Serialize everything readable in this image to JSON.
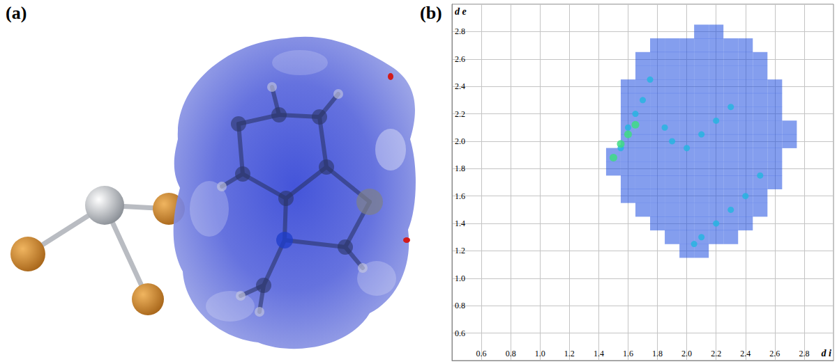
{
  "panel_labels": [
    "(a)",
    "(b)"
  ],
  "chart_data": {
    "type": "scatter",
    "xlabel": "d i",
    "ylabel": "d e",
    "xlim": [
      0.4,
      3.0
    ],
    "ylim": [
      0.4,
      3.0
    ],
    "xticks": [
      0.6,
      0.8,
      {
        "value": 1,
        "label": "1.0"
      },
      1.2,
      1.4,
      1.6,
      1.8,
      {
        "value": 2,
        "label": "2.0"
      },
      2.2,
      2.4,
      2.6,
      2.8
    ],
    "yticks": [
      0.6,
      0.8,
      {
        "value": 1,
        "label": "1.0"
      },
      1.2,
      1.4,
      1.6,
      1.8,
      {
        "value": 2,
        "label": "2.0"
      },
      2.2,
      2.4,
      2.6,
      2.8
    ],
    "grid": true,
    "series": [
      {
        "color": "#1f4fe0",
        "marker": "square",
        "x": [
          2.1,
          2.2,
          1.8,
          1.9,
          2.0,
          2.1,
          2.2,
          2.3,
          2.4,
          1.7,
          1.8,
          1.9,
          2.0,
          2.1,
          2.2,
          2.3,
          2.4,
          2.5,
          1.7,
          1.8,
          1.9,
          2.0,
          2.1,
          2.2,
          2.3,
          2.4,
          2.5,
          1.6,
          1.7,
          1.8,
          1.9,
          2.0,
          2.1,
          2.2,
          2.3,
          2.4,
          2.5,
          2.6,
          1.6,
          1.7,
          1.8,
          1.9,
          2.0,
          2.1,
          2.2,
          2.3,
          2.4,
          2.5,
          2.6,
          1.6,
          1.7,
          1.8,
          1.9,
          2.0,
          2.1,
          2.2,
          2.3,
          2.4,
          2.5,
          2.6,
          1.6,
          1.7,
          1.8,
          1.9,
          2.0,
          2.1,
          2.2,
          2.3,
          2.4,
          2.5,
          2.6,
          2.7,
          1.6,
          1.7,
          1.8,
          1.9,
          2.0,
          2.1,
          2.2,
          2.3,
          2.4,
          2.5,
          2.6,
          2.7,
          1.5,
          1.6,
          1.7,
          1.8,
          1.9,
          2.0,
          2.1,
          2.2,
          2.3,
          2.4,
          2.5,
          2.6,
          1.5,
          1.6,
          1.7,
          1.8,
          1.9,
          2.0,
          2.1,
          2.2,
          2.3,
          2.4,
          2.5,
          2.6,
          1.6,
          1.7,
          1.8,
          1.9,
          2.0,
          2.1,
          2.2,
          2.3,
          2.4,
          2.5,
          2.6,
          1.6,
          1.7,
          1.8,
          1.9,
          2.0,
          2.1,
          2.2,
          2.3,
          2.4,
          2.5,
          1.7,
          1.8,
          1.9,
          2.0,
          2.1,
          2.2,
          2.3,
          2.4,
          2.5,
          1.8,
          1.9,
          2.0,
          2.1,
          2.2,
          2.3,
          2.4,
          1.9,
          2.0,
          2.1,
          2.2,
          2.3,
          2.0,
          2.1
        ],
        "values": [
          2.8,
          2.8,
          2.7,
          2.7,
          2.7,
          2.7,
          2.7,
          2.7,
          2.7,
          2.6,
          2.6,
          2.6,
          2.6,
          2.6,
          2.6,
          2.6,
          2.6,
          2.6,
          2.5,
          2.5,
          2.5,
          2.5,
          2.5,
          2.5,
          2.5,
          2.5,
          2.5,
          2.4,
          2.4,
          2.4,
          2.4,
          2.4,
          2.4,
          2.4,
          2.4,
          2.4,
          2.4,
          2.4,
          2.3,
          2.3,
          2.3,
          2.3,
          2.3,
          2.3,
          2.3,
          2.3,
          2.3,
          2.3,
          2.3,
          2.2,
          2.2,
          2.2,
          2.2,
          2.2,
          2.2,
          2.2,
          2.2,
          2.2,
          2.2,
          2.2,
          2.1,
          2.1,
          2.1,
          2.1,
          2.1,
          2.1,
          2.1,
          2.1,
          2.1,
          2.1,
          2.1,
          2.1,
          2.0,
          2.0,
          2.0,
          2.0,
          2.0,
          2.0,
          2.0,
          2.0,
          2.0,
          2.0,
          2.0,
          2.0,
          1.9,
          1.9,
          1.9,
          1.9,
          1.9,
          1.9,
          1.9,
          1.9,
          1.9,
          1.9,
          1.9,
          1.9,
          1.8,
          1.8,
          1.8,
          1.8,
          1.8,
          1.8,
          1.8,
          1.8,
          1.8,
          1.8,
          1.8,
          1.8,
          1.7,
          1.7,
          1.7,
          1.7,
          1.7,
          1.7,
          1.7,
          1.7,
          1.7,
          1.7,
          1.7,
          1.6,
          1.6,
          1.6,
          1.6,
          1.6,
          1.6,
          1.6,
          1.6,
          1.6,
          1.6,
          1.5,
          1.5,
          1.5,
          1.5,
          1.5,
          1.5,
          1.5,
          1.5,
          1.5,
          1.4,
          1.4,
          1.4,
          1.4,
          1.4,
          1.4,
          1.4,
          1.3,
          1.3,
          1.3,
          1.3,
          1.3,
          1.2,
          1.2
        ]
      },
      {
        "color": "#27b4e0",
        "marker": "circle",
        "x": [
          1.55,
          1.6,
          1.65,
          1.7,
          1.75,
          2.0,
          2.1,
          2.2,
          2.3,
          1.85,
          1.9,
          2.1,
          2.2,
          2.3,
          2.4,
          2.5,
          2.05
        ],
        "values": [
          1.95,
          2.1,
          2.2,
          2.3,
          2.45,
          1.95,
          2.05,
          2.15,
          2.25,
          2.1,
          2.0,
          1.3,
          1.4,
          1.5,
          1.6,
          1.75,
          1.25
        ]
      },
      {
        "color": "#3ddc84",
        "marker": "circle",
        "x": [
          1.5,
          1.55,
          1.6,
          1.65
        ],
        "values": [
          1.88,
          1.98,
          2.05,
          2.12
        ]
      }
    ]
  }
}
